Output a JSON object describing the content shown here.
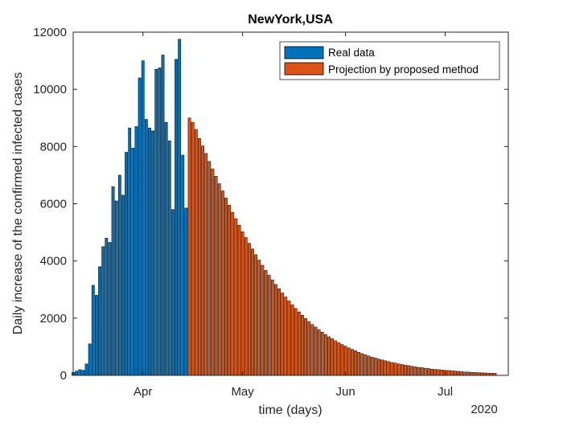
{
  "chart_data": {
    "type": "bar",
    "title": "NewYork,USA",
    "xlabel": "time (days)",
    "ylabel": "Daily increase of the confirmed infected cases",
    "year_label": "2020",
    "ylim": [
      0,
      12000
    ],
    "yticks": [
      0,
      2000,
      4000,
      6000,
      8000,
      10000,
      12000
    ],
    "xlim": [
      "2020-03-11",
      "2020-07-20"
    ],
    "xticks": [
      {
        "label": "Apr",
        "date": "2020-04-01"
      },
      {
        "label": "May",
        "date": "2020-05-01"
      },
      {
        "label": "Jun",
        "date": "2020-06-01"
      },
      {
        "label": "Jul",
        "date": "2020-07-01"
      }
    ],
    "grid": false,
    "legend_position": "top-right",
    "series": [
      {
        "name": "Real data",
        "color": "#0072BD",
        "start_date": "2020-03-11",
        "values": [
          100,
          150,
          200,
          180,
          400,
          1100,
          3150,
          2800,
          3800,
          4500,
          4800,
          4650,
          6600,
          6100,
          7000,
          6300,
          7800,
          8650,
          7950,
          8700,
          10400,
          11000,
          8950,
          8650,
          8550,
          10700,
          10750,
          11200,
          8850,
          8200,
          5800,
          11050,
          11750,
          7700,
          5850
        ]
      },
      {
        "name": "Projection by proposed method",
        "color": "#D95319",
        "start_date": "2020-04-15",
        "values": [
          9000,
          8850,
          8600,
          8280,
          8020,
          7760,
          7480,
          7220,
          6960,
          6700,
          6450,
          6200,
          5950,
          5700,
          5480,
          5250,
          5020,
          4820,
          4620,
          4420,
          4220,
          4030,
          3850,
          3670,
          3500,
          3340,
          3180,
          3030,
          2880,
          2740,
          2600,
          2470,
          2340,
          2220,
          2100,
          1990,
          1880,
          1780,
          1690,
          1600,
          1510,
          1430,
          1350,
          1280,
          1210,
          1140,
          1080,
          1020,
          960,
          910,
          860,
          810,
          760,
          720,
          680,
          640,
          610,
          570,
          540,
          510,
          480,
          450,
          430,
          400,
          380,
          360,
          340,
          320,
          300,
          280,
          270,
          250,
          240,
          220,
          210,
          200,
          190,
          180,
          170,
          160,
          150,
          140,
          130,
          120,
          115,
          108,
          102,
          96,
          90,
          85,
          80,
          76,
          72
        ]
      }
    ]
  }
}
